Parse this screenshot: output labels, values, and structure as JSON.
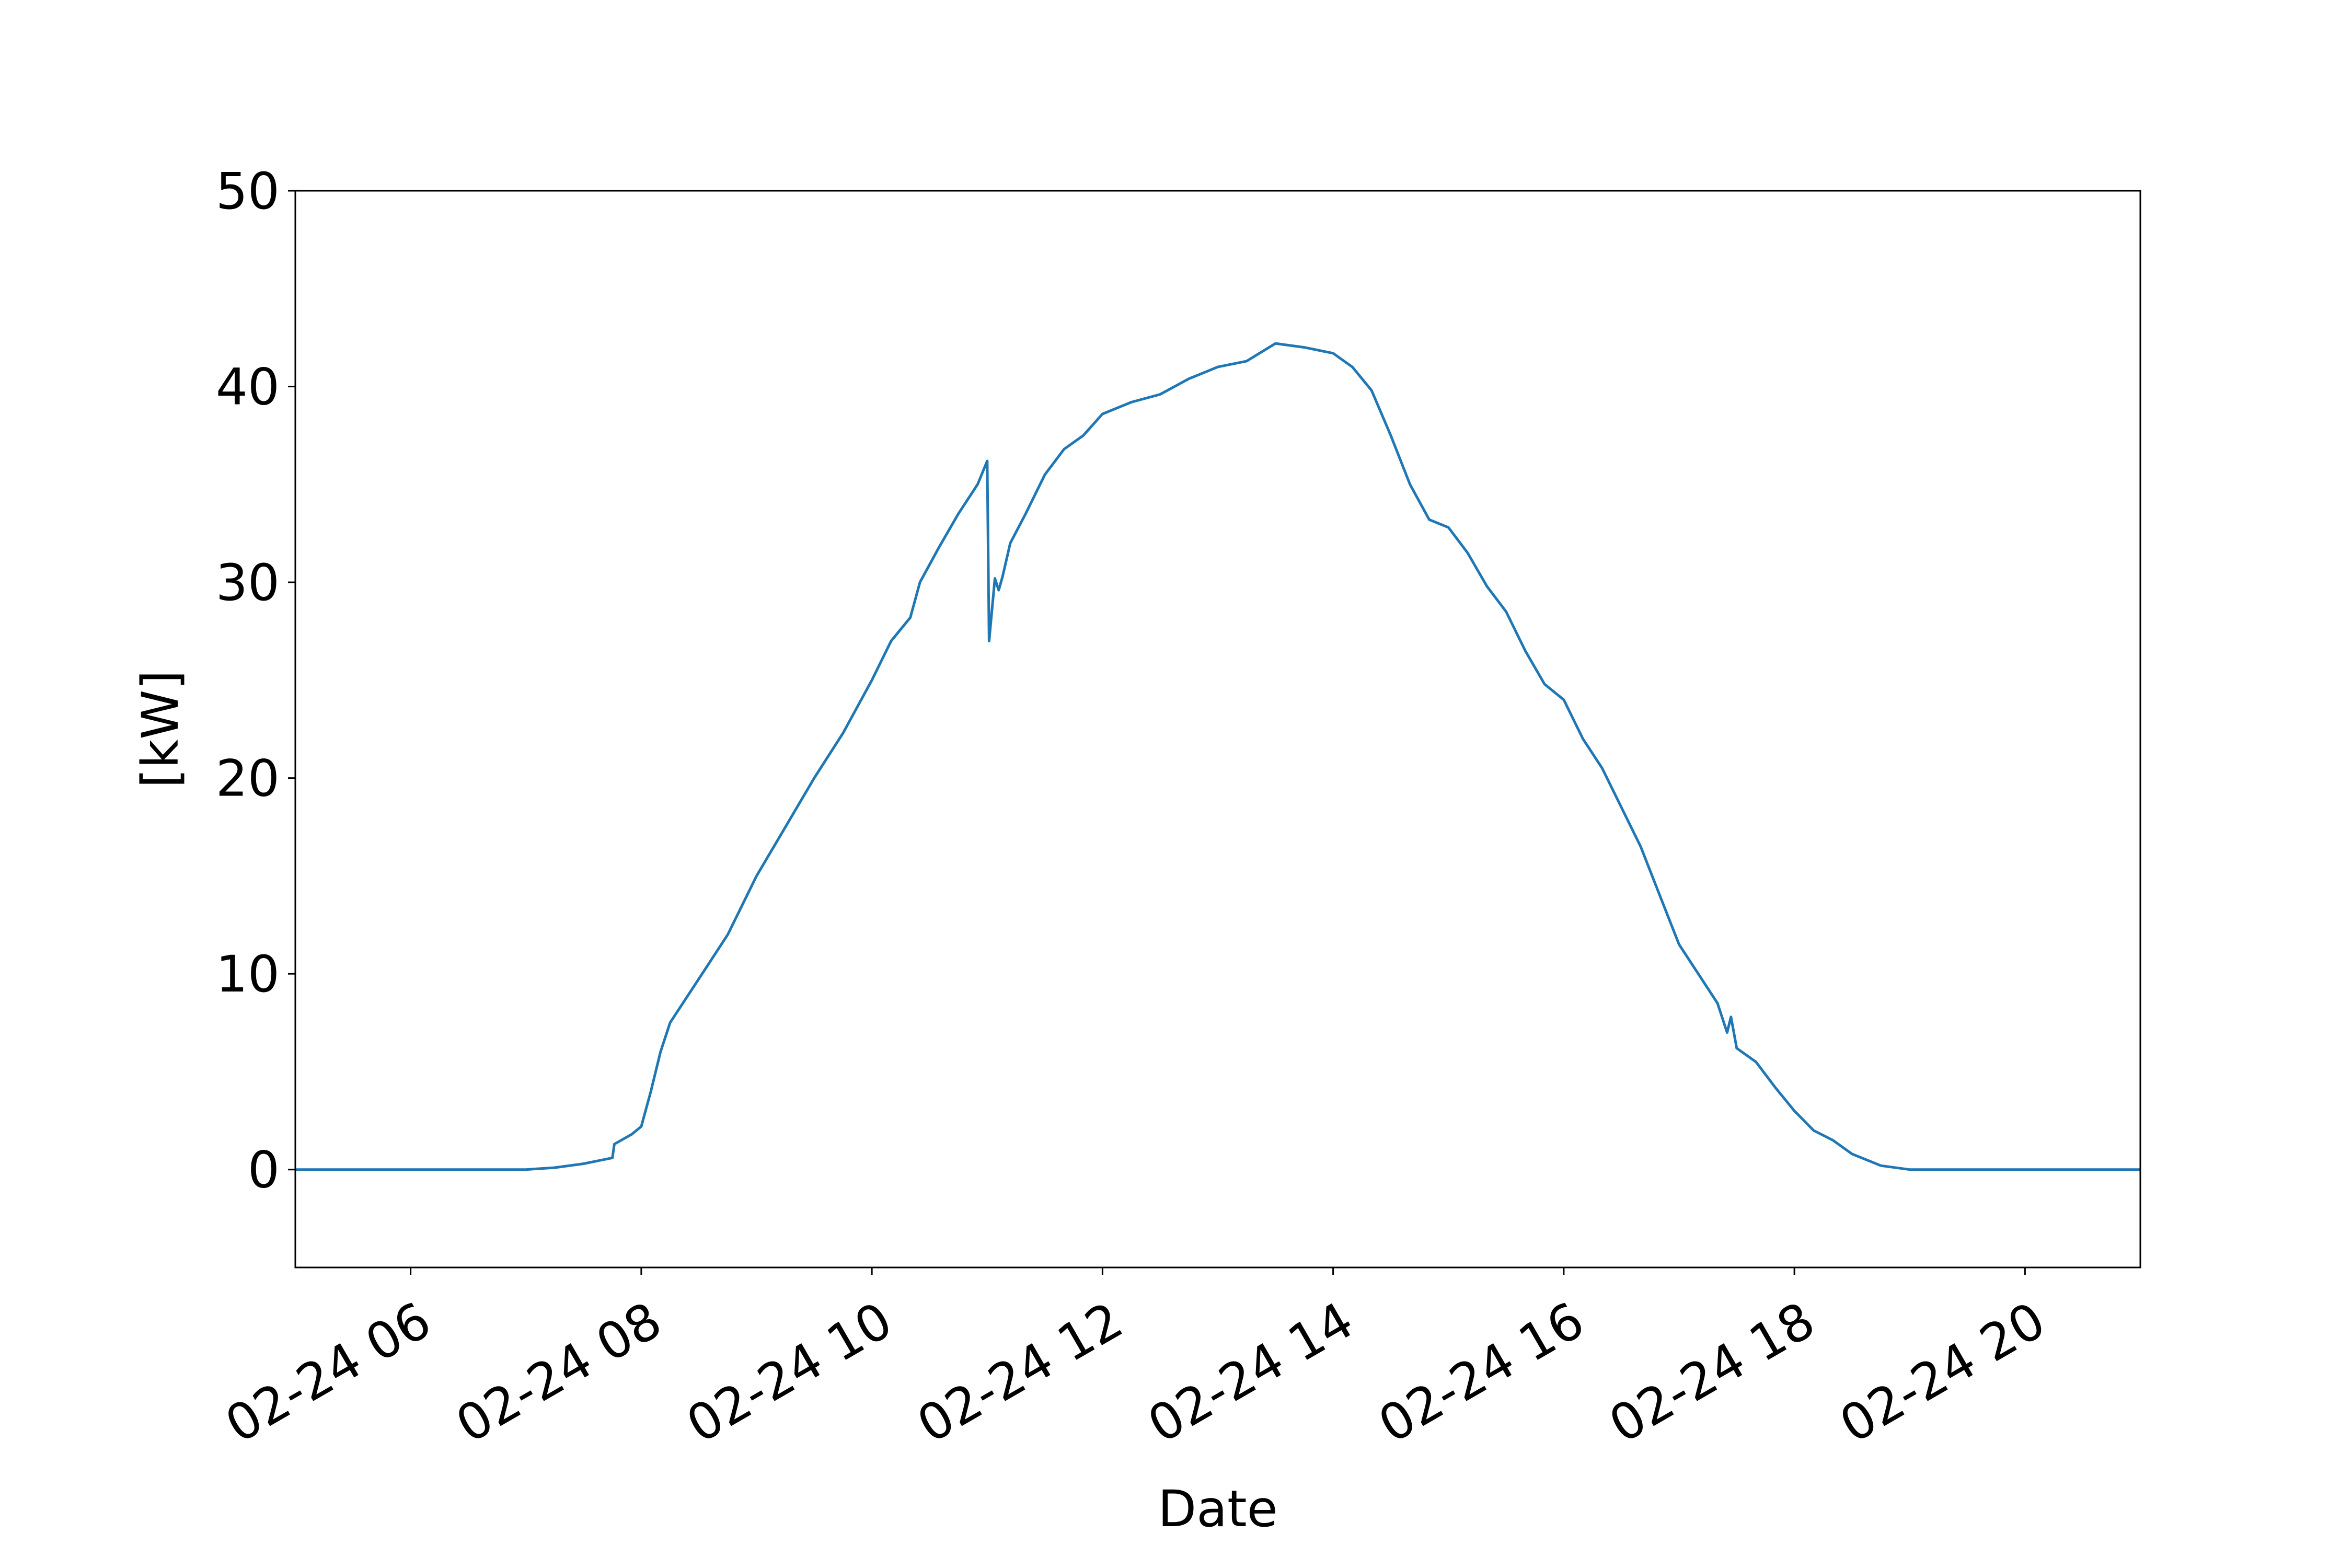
{
  "chart_data": {
    "type": "line",
    "title": "",
    "xlabel": "Date",
    "ylabel": "[kW]",
    "xlim": [
      "02-24 05:00",
      "02-24 21:00"
    ],
    "ylim": [
      -5,
      50
    ],
    "x_ticks": [
      "02-24 06",
      "02-24 08",
      "02-24 10",
      "02-24 12",
      "02-24 14",
      "02-24 16",
      "02-24 18",
      "02-24 20"
    ],
    "y_ticks": [
      "0",
      "10",
      "20",
      "30",
      "40",
      "50"
    ],
    "grid": false,
    "legend": "none",
    "series": [
      {
        "color": "#1f77b4",
        "points": [
          [
            "02-24 05:00",
            0
          ],
          [
            "02-24 06:00",
            0
          ],
          [
            "02-24 07:00",
            0
          ],
          [
            "02-24 07:15",
            0.1
          ],
          [
            "02-24 07:30",
            0.3
          ],
          [
            "02-24 07:45",
            0.6
          ],
          [
            "02-24 07:46",
            1.3
          ],
          [
            "02-24 07:55",
            1.8
          ],
          [
            "02-24 08:00",
            2.2
          ],
          [
            "02-24 08:05",
            4.0
          ],
          [
            "02-24 08:10",
            6.0
          ],
          [
            "02-24 08:15",
            7.5
          ],
          [
            "02-24 08:25",
            9.0
          ],
          [
            "02-24 08:35",
            10.5
          ],
          [
            "02-24 08:45",
            12.0
          ],
          [
            "02-24 09:00",
            15.0
          ],
          [
            "02-24 09:15",
            17.5
          ],
          [
            "02-24 09:30",
            20.0
          ],
          [
            "02-24 09:45",
            22.3
          ],
          [
            "02-24 10:00",
            25.0
          ],
          [
            "02-24 10:10",
            27.0
          ],
          [
            "02-24 10:20",
            28.2
          ],
          [
            "02-24 10:25",
            30.0
          ],
          [
            "02-24 10:35",
            31.8
          ],
          [
            "02-24 10:45",
            33.5
          ],
          [
            "02-24 10:55",
            35.0
          ],
          [
            "02-24 11:00",
            36.2
          ],
          [
            "02-24 11:01",
            27.0
          ],
          [
            "02-24 11:04",
            30.2
          ],
          [
            "02-24 11:06",
            29.6
          ],
          [
            "02-24 11:08",
            30.3
          ],
          [
            "02-24 11:12",
            32.0
          ],
          [
            "02-24 11:20",
            33.5
          ],
          [
            "02-24 11:30",
            35.5
          ],
          [
            "02-24 11:40",
            36.8
          ],
          [
            "02-24 11:50",
            37.5
          ],
          [
            "02-24 12:00",
            38.6
          ],
          [
            "02-24 12:15",
            39.2
          ],
          [
            "02-24 12:30",
            39.6
          ],
          [
            "02-24 12:45",
            40.4
          ],
          [
            "02-24 13:00",
            41.0
          ],
          [
            "02-24 13:15",
            41.3
          ],
          [
            "02-24 13:30",
            42.2
          ],
          [
            "02-24 13:45",
            42.0
          ],
          [
            "02-24 14:00",
            41.7
          ],
          [
            "02-24 14:10",
            41.0
          ],
          [
            "02-24 14:20",
            39.8
          ],
          [
            "02-24 14:30",
            37.5
          ],
          [
            "02-24 14:40",
            35.0
          ],
          [
            "02-24 14:50",
            33.2
          ],
          [
            "02-24 15:00",
            32.8
          ],
          [
            "02-24 15:10",
            31.5
          ],
          [
            "02-24 15:20",
            29.8
          ],
          [
            "02-24 15:30",
            28.5
          ],
          [
            "02-24 15:40",
            26.5
          ],
          [
            "02-24 15:50",
            24.8
          ],
          [
            "02-24 16:00",
            24.0
          ],
          [
            "02-24 16:10",
            22.0
          ],
          [
            "02-24 16:20",
            20.5
          ],
          [
            "02-24 16:30",
            18.5
          ],
          [
            "02-24 16:40",
            16.5
          ],
          [
            "02-24 16:50",
            14.0
          ],
          [
            "02-24 17:00",
            11.5
          ],
          [
            "02-24 17:10",
            10.0
          ],
          [
            "02-24 17:20",
            8.5
          ],
          [
            "02-24 17:25",
            7.0
          ],
          [
            "02-24 17:27",
            7.8
          ],
          [
            "02-24 17:30",
            6.2
          ],
          [
            "02-24 17:40",
            5.5
          ],
          [
            "02-24 17:50",
            4.2
          ],
          [
            "02-24 18:00",
            3.0
          ],
          [
            "02-24 18:10",
            2.0
          ],
          [
            "02-24 18:20",
            1.5
          ],
          [
            "02-24 18:30",
            0.8
          ],
          [
            "02-24 18:45",
            0.2
          ],
          [
            "02-24 19:00",
            0
          ],
          [
            "02-24 20:00",
            0
          ],
          [
            "02-24 21:00",
            0
          ]
        ]
      }
    ]
  }
}
